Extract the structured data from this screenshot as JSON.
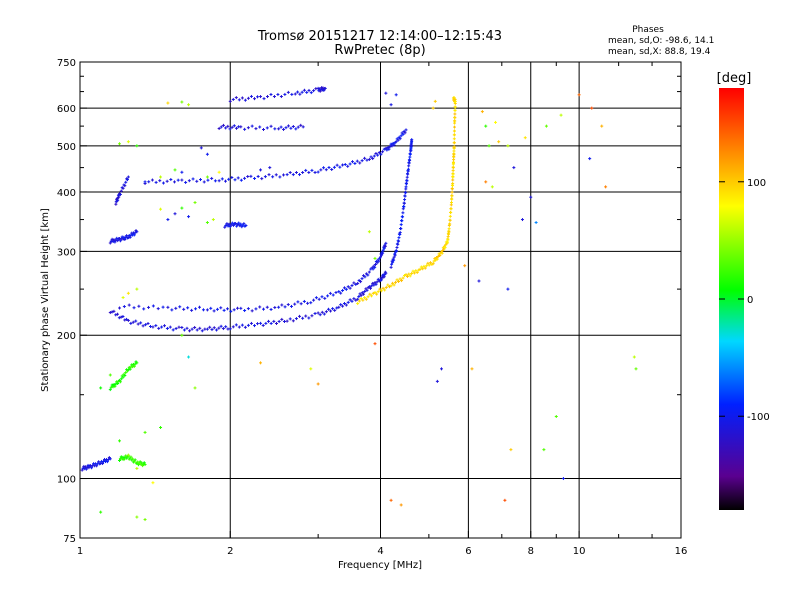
{
  "chart_data": {
    "type": "scatter",
    "title": "Tromsø 20151217 12:14:00–12:15:43",
    "subtitle": "RwPretec (8p)",
    "xlabel": "Frequency [MHz]",
    "ylabel": "Stationary phase Virtual Height [km]",
    "xscale": "log",
    "yscale": "log",
    "xlim": [
      1,
      16
    ],
    "ylim": [
      75,
      750
    ],
    "xticks": [
      1,
      2,
      4,
      6,
      8,
      10,
      16
    ],
    "xtick_labels": [
      "1",
      "2",
      "4",
      "6",
      "8",
      "10",
      "16"
    ],
    "yticks": [
      75,
      100,
      200,
      300,
      400,
      500,
      600,
      750
    ],
    "ytick_labels": [
      "75",
      "100",
      "200",
      "300",
      "400",
      "500",
      "600",
      "750"
    ],
    "grid": true,
    "stats": {
      "heading": "Phases",
      "line_o": "mean, sd,O: -98.6, 14.1",
      "line_x": "mean, sd,X:  88.8, 19.4"
    },
    "colorbar": {
      "unit": "[deg]",
      "range": [
        -180,
        180
      ],
      "ticks": [
        100,
        0,
        -100
      ],
      "tick_labels": [
        "100",
        "0",
        "-100"
      ]
    },
    "traces": [
      {
        "name": "o_lower_F",
        "phase": -110,
        "points": [
          [
            1.15,
            225
          ],
          [
            1.25,
            214
          ],
          [
            1.4,
            209
          ],
          [
            1.6,
            206
          ],
          [
            1.8,
            206
          ],
          [
            2.0,
            208
          ],
          [
            2.3,
            211
          ],
          [
            2.6,
            215
          ],
          [
            3.0,
            221
          ],
          [
            3.3,
            229
          ],
          [
            3.6,
            240
          ],
          [
            3.8,
            252
          ],
          [
            4.0,
            262
          ],
          [
            4.1,
            270
          ]
        ]
      },
      {
        "name": "o_lower_F_upper_branch",
        "phase": -105,
        "points": [
          [
            1.2,
            230
          ],
          [
            1.5,
            228
          ],
          [
            1.8,
            227
          ],
          [
            2.1,
            226
          ],
          [
            2.5,
            229
          ],
          [
            2.9,
            236
          ],
          [
            3.3,
            246
          ],
          [
            3.6,
            258
          ],
          [
            3.85,
            275
          ],
          [
            4.0,
            292
          ],
          [
            4.1,
            312
          ]
        ]
      },
      {
        "name": "o_upper_F",
        "phase": -105,
        "points": [
          [
            1.35,
            420
          ],
          [
            1.6,
            422
          ],
          [
            1.9,
            424
          ],
          [
            2.2,
            428
          ],
          [
            2.6,
            435
          ],
          [
            3.0,
            444
          ],
          [
            3.4,
            455
          ],
          [
            3.8,
            470
          ],
          [
            4.1,
            490
          ],
          [
            4.3,
            510
          ],
          [
            4.5,
            540
          ]
        ]
      },
      {
        "name": "o_F2_cusp",
        "phase": -100,
        "points": [
          [
            4.2,
            280
          ],
          [
            4.3,
            300
          ],
          [
            4.38,
            330
          ],
          [
            4.45,
            370
          ],
          [
            4.5,
            410
          ],
          [
            4.55,
            450
          ],
          [
            4.6,
            490
          ],
          [
            4.62,
            515
          ]
        ]
      },
      {
        "name": "o_F_high",
        "phase": -110,
        "points": [
          [
            2.0,
            625
          ],
          [
            2.3,
            632
          ],
          [
            2.7,
            645
          ],
          [
            3.0,
            655
          ],
          [
            3.1,
            660
          ]
        ]
      },
      {
        "name": "o_F_545",
        "phase": -110,
        "points": [
          [
            1.9,
            548
          ],
          [
            2.1,
            546
          ],
          [
            2.5,
            545
          ],
          [
            2.8,
            548
          ]
        ]
      },
      {
        "name": "o_E_low",
        "phase": -105,
        "points": [
          [
            1.01,
            105
          ],
          [
            1.05,
            106
          ],
          [
            1.1,
            108
          ],
          [
            1.15,
            110
          ]
        ]
      },
      {
        "name": "o_Es_330",
        "phase": -100,
        "points": [
          [
            1.95,
            340
          ],
          [
            2.05,
            342
          ],
          [
            2.15,
            340
          ]
        ]
      },
      {
        "name": "o_Es_315",
        "phase": -105,
        "points": [
          [
            1.15,
            315
          ],
          [
            1.2,
            318
          ],
          [
            1.25,
            322
          ],
          [
            1.3,
            330
          ]
        ]
      },
      {
        "name": "o_early_rise",
        "phase": -110,
        "points": [
          [
            1.18,
            380
          ],
          [
            1.2,
            395
          ],
          [
            1.25,
            430
          ]
        ]
      },
      {
        "name": "x_F",
        "phase": 95,
        "points": [
          [
            3.6,
            235
          ],
          [
            3.9,
            245
          ],
          [
            4.2,
            255
          ],
          [
            4.5,
            266
          ],
          [
            4.8,
            275
          ],
          [
            5.1,
            285
          ],
          [
            5.3,
            298
          ],
          [
            5.45,
            315
          ],
          [
            5.5,
            340
          ],
          [
            5.55,
            380
          ],
          [
            5.58,
            420
          ],
          [
            5.6,
            460
          ],
          [
            5.62,
            500
          ],
          [
            5.63,
            560
          ],
          [
            5.65,
            620
          ],
          [
            5.6,
            630
          ]
        ]
      },
      {
        "name": "x_E_low",
        "phase": 20,
        "points": [
          [
            1.2,
            110
          ],
          [
            1.25,
            111
          ],
          [
            1.3,
            108
          ],
          [
            1.35,
            107
          ]
        ]
      },
      {
        "name": "x_E_scatter",
        "phase": 15,
        "points": [
          [
            1.15,
            155
          ],
          [
            1.2,
            160
          ],
          [
            1.25,
            170
          ],
          [
            1.3,
            175
          ]
        ]
      }
    ],
    "scatter": [
      [
        1.5,
        615,
        95
      ],
      [
        1.6,
        618,
        40
      ],
      [
        1.65,
        610,
        60
      ],
      [
        4.1,
        645,
        -110
      ],
      [
        4.3,
        640,
        -100
      ],
      [
        4.2,
        610,
        -105
      ],
      [
        5.1,
        600,
        100
      ],
      [
        5.15,
        620,
        100
      ],
      [
        6.4,
        590,
        110
      ],
      [
        6.5,
        550,
        20
      ],
      [
        6.6,
        500,
        30
      ],
      [
        6.8,
        560,
        80
      ],
      [
        6.9,
        510,
        100
      ],
      [
        7.2,
        500,
        60
      ],
      [
        7.4,
        450,
        -110
      ],
      [
        7.8,
        520,
        90
      ],
      [
        8.6,
        550,
        35
      ],
      [
        9.2,
        580,
        60
      ],
      [
        10.0,
        640,
        140
      ],
      [
        10.6,
        600,
        150
      ],
      [
        10.5,
        470,
        -100
      ],
      [
        11.1,
        550,
        110
      ],
      [
        11.3,
        410,
        130
      ],
      [
        6.5,
        420,
        130
      ],
      [
        6.7,
        410,
        60
      ],
      [
        8.0,
        390,
        -110
      ],
      [
        7.7,
        350,
        -110
      ],
      [
        8.2,
        345,
        -60
      ],
      [
        7.2,
        250,
        -100
      ],
      [
        3.8,
        330,
        60
      ],
      [
        3.9,
        290,
        40
      ],
      [
        5.9,
        280,
        120
      ],
      [
        6.3,
        260,
        -110
      ],
      [
        5.2,
        160,
        -110
      ],
      [
        5.3,
        170,
        -110
      ],
      [
        3.9,
        192,
        150
      ],
      [
        2.9,
        170,
        70
      ],
      [
        3.0,
        158,
        120
      ],
      [
        2.3,
        175,
        110
      ],
      [
        6.1,
        170,
        110
      ],
      [
        7.3,
        115,
        100
      ],
      [
        7.1,
        90,
        150
      ],
      [
        8.5,
        115,
        30
      ],
      [
        9.0,
        135,
        30
      ],
      [
        9.3,
        100,
        -100
      ],
      [
        12.9,
        180,
        60
      ],
      [
        13.0,
        170,
        35
      ],
      [
        4.2,
        90,
        140
      ],
      [
        4.4,
        88,
        120
      ],
      [
        1.1,
        155,
        10
      ],
      [
        1.15,
        165,
        30
      ],
      [
        1.2,
        120,
        20
      ],
      [
        1.25,
        112,
        50
      ],
      [
        1.3,
        105,
        60
      ],
      [
        1.4,
        98,
        80
      ],
      [
        1.35,
        125,
        30
      ],
      [
        1.45,
        128,
        20
      ],
      [
        1.3,
        83,
        45
      ],
      [
        1.35,
        82,
        40
      ],
      [
        1.1,
        85,
        20
      ],
      [
        1.6,
        200,
        35
      ],
      [
        1.65,
        180,
        -30
      ],
      [
        1.7,
        155,
        45
      ],
      [
        1.55,
        360,
        -110
      ],
      [
        1.6,
        370,
        20
      ],
      [
        1.65,
        355,
        -100
      ],
      [
        1.8,
        345,
        30
      ],
      [
        1.85,
        350,
        60
      ],
      [
        1.7,
        380,
        40
      ],
      [
        1.5,
        350,
        -100
      ],
      [
        1.25,
        245,
        90
      ],
      [
        1.3,
        250,
        60
      ],
      [
        1.22,
        240,
        70
      ],
      [
        1.35,
        420,
        -100
      ],
      [
        1.45,
        430,
        60
      ],
      [
        1.55,
        445,
        30
      ],
      [
        1.6,
        440,
        -100
      ],
      [
        1.8,
        430,
        40
      ],
      [
        1.9,
        440,
        80
      ],
      [
        1.2,
        505,
        40
      ],
      [
        1.25,
        510,
        70
      ],
      [
        1.3,
        500,
        20
      ],
      [
        1.75,
        495,
        -110
      ],
      [
        1.8,
        480,
        -100
      ],
      [
        2.3,
        445,
        -110
      ],
      [
        2.4,
        450,
        -110
      ],
      [
        1.45,
        368,
        70
      ]
    ]
  }
}
